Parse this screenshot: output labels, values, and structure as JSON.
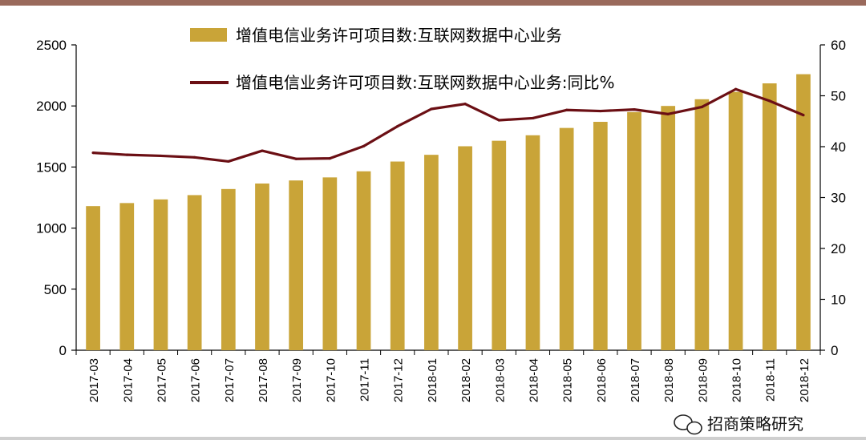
{
  "chart_data": {
    "type": "bar+line",
    "categories": [
      "2017-03",
      "2017-04",
      "2017-05",
      "2017-06",
      "2017-07",
      "2017-08",
      "2017-09",
      "2017-10",
      "2017-11",
      "2017-12",
      "2018-01",
      "2018-02",
      "2018-03",
      "2018-04",
      "2018-05",
      "2018-06",
      "2018-07",
      "2018-08",
      "2018-09",
      "2018-10",
      "2018-11",
      "2018-12"
    ],
    "series": [
      {
        "name": "增值电信业务许可项目数:互联网数据中心业务",
        "kind": "bar",
        "axis": "left",
        "color": "#C9A438",
        "values": [
          1180,
          1205,
          1235,
          1270,
          1320,
          1365,
          1390,
          1415,
          1465,
          1545,
          1600,
          1670,
          1715,
          1760,
          1820,
          1870,
          1950,
          2000,
          2055,
          2115,
          2185,
          2260
        ]
      },
      {
        "name": "增值电信业务许可项目数:互联网数据中心业务:同比%",
        "kind": "line",
        "axis": "right",
        "color": "#6B0F14",
        "values": [
          38.8,
          38.4,
          38.2,
          37.9,
          37.1,
          39.2,
          37.6,
          37.7,
          40.1,
          44.0,
          47.4,
          48.4,
          45.2,
          45.6,
          47.2,
          47.0,
          47.3,
          46.4,
          47.8,
          51.3,
          49.0,
          46.2
        ]
      }
    ],
    "yleft": {
      "min": 0,
      "max": 2500,
      "ticks": [
        0,
        500,
        1000,
        1500,
        2000,
        2500
      ]
    },
    "yright": {
      "min": 0,
      "max": 60,
      "ticks": [
        0,
        10,
        20,
        30,
        40,
        50,
        60
      ]
    },
    "grid": false,
    "legend_position": "top"
  },
  "watermark": {
    "text": "招商策略研究",
    "icon": "wechat-icon"
  }
}
